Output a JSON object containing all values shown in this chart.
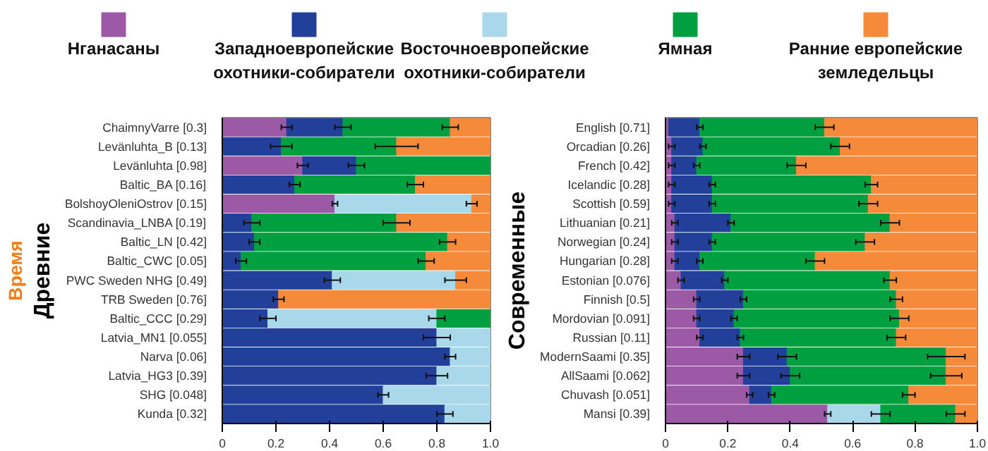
{
  "chart_data": [
    {
      "type": "bar",
      "stacked": true,
      "orientation": "horizontal",
      "legend": "top",
      "xlim": [
        0,
        1.0
      ],
      "xticks": [
        0,
        0.2,
        0.4,
        0.6,
        0.8,
        {
          "value": 1.0,
          "label": "1.0"
        }
      ],
      "annotations": [
        "Время",
        "Древние"
      ],
      "categories": [
        "ChaimnyVarre [0.3]",
        "Levänluhta_B [0.13]",
        "Levänluhta [0.98]",
        "Baltic_BA [0.16]",
        "BolshoyOleniOstrov [0.15]",
        "Scandinavia_LNBA [0.19]",
        "Baltic_LN [0.42]",
        "Baltic_CWC [0.05]",
        "PWC Sweden NHG [0.49]",
        "TRB Sweden [0.76]",
        "Baltic_CCC [0.29]",
        "Latvia_MN1 [0.055]",
        "Narva [0.06]",
        "Latvia_HG3 [0.39]",
        "SHG [0.048]",
        "Kunda [0.32]"
      ],
      "series": [
        {
          "name": "Нганасаны",
          "color": "#9b59a6",
          "values": [
            0.24,
            null,
            0.3,
            null,
            0.42,
            null,
            null,
            null,
            null,
            null,
            null,
            null,
            null,
            null,
            null,
            null
          ],
          "errors": [
            0.02,
            null,
            0.02,
            null,
            0.01,
            null,
            null,
            null,
            null,
            null,
            null,
            null,
            null,
            null,
            null,
            null
          ]
        },
        {
          "name": "Западноевропейские охотники-собиратели",
          "color": "#22409a",
          "values": [
            0.21,
            0.22,
            0.2,
            0.27,
            null,
            0.11,
            0.12,
            0.07,
            0.41,
            0.21,
            0.17,
            0.8,
            0.85,
            0.8,
            0.6,
            0.83
          ],
          "errors": [
            0.03,
            0.04,
            0.03,
            0.02,
            null,
            0.03,
            0.02,
            0.02,
            0.03,
            0.02,
            0.03,
            0.05,
            0.02,
            0.04,
            0.02,
            0.03
          ]
        },
        {
          "name": "Восточноевропейские охотники-собиратели",
          "color": "#a8d8ea",
          "values": [
            null,
            null,
            null,
            null,
            0.51,
            null,
            null,
            null,
            0.46,
            null,
            0.63,
            0.2,
            0.15,
            0.2,
            0.4,
            0.17
          ],
          "errors": [
            null,
            null,
            null,
            null,
            0.02,
            null,
            null,
            null,
            0.04,
            null,
            0.03,
            null,
            null,
            null,
            null,
            null
          ]
        },
        {
          "name": "Ямная",
          "color": "#00a040",
          "values": [
            0.4,
            0.43,
            0.5,
            0.45,
            null,
            0.54,
            0.72,
            0.69,
            null,
            null,
            0.2,
            null,
            null,
            null,
            null,
            null
          ],
          "errors": [
            0.03,
            0.08,
            null,
            0.03,
            null,
            0.05,
            0.03,
            0.03,
            null,
            null,
            null,
            null,
            null,
            null,
            null,
            null
          ]
        },
        {
          "name": "Ранние европейские земледельцы",
          "color": "#f58a3a",
          "values": [
            0.15,
            0.35,
            null,
            0.28,
            0.07,
            0.35,
            0.16,
            0.24,
            0.13,
            0.79,
            null,
            null,
            null,
            null,
            null,
            null
          ]
        }
      ]
    },
    {
      "type": "bar",
      "stacked": true,
      "orientation": "horizontal",
      "xlim": [
        0,
        1.0
      ],
      "xticks": [
        0,
        0.2,
        0.4,
        0.6,
        0.8,
        {
          "value": 1.0,
          "label": "1.0"
        }
      ],
      "annotations": [
        "Современные"
      ],
      "categories": [
        "English [0.71]",
        "Orcadian [0.26]",
        "French [0.42]",
        "Icelandic [0.28]",
        "Scottish [0.59]",
        "Lithuanian [0.21]",
        "Norwegian [0.24]",
        "Hungarian [0.28]",
        "Estonian [0.076]",
        "Finnish [0.5]",
        "Mordovian [0.091]",
        "Russian [0.11]",
        "ModernSaami [0.35]",
        "AllSaami [0.062]",
        "Chuvash [0.051]",
        "Mansi [0.39]"
      ],
      "series": [
        {
          "color": "#9b59a6",
          "values": [
            0.01,
            0.02,
            0.02,
            0.02,
            0.02,
            0.03,
            0.03,
            0.03,
            0.05,
            0.1,
            0.1,
            0.11,
            0.25,
            0.25,
            0.27,
            0.52
          ],
          "errors": [
            null,
            0.01,
            0.01,
            0.01,
            0.01,
            0.01,
            0.01,
            0.01,
            0.01,
            0.01,
            0.01,
            0.01,
            0.02,
            0.02,
            0.01,
            0.01
          ]
        },
        {
          "color": "#22409a",
          "values": [
            0.1,
            0.1,
            0.08,
            0.13,
            0.13,
            0.18,
            0.12,
            0.08,
            0.14,
            0.15,
            0.12,
            0.13,
            0.14,
            0.15,
            0.07,
            null
          ],
          "errors": [
            0.01,
            0.01,
            0.01,
            0.01,
            0.01,
            0.01,
            0.01,
            0.01,
            0.01,
            0.01,
            0.01,
            0.01,
            0.03,
            0.03,
            0.01,
            null
          ]
        },
        {
          "color": "#a8d8ea",
          "values": [
            null,
            null,
            null,
            null,
            null,
            null,
            null,
            null,
            null,
            null,
            null,
            null,
            null,
            null,
            null,
            0.17
          ],
          "errors": [
            null,
            null,
            null,
            null,
            null,
            null,
            null,
            null,
            null,
            null,
            null,
            null,
            null,
            null,
            null,
            0.03
          ]
        },
        {
          "color": "#00a040",
          "values": [
            0.4,
            0.44,
            0.32,
            0.51,
            0.5,
            0.51,
            0.49,
            0.37,
            0.53,
            0.49,
            0.53,
            0.5,
            0.51,
            0.5,
            0.44,
            0.24
          ],
          "errors": [
            0.03,
            0.03,
            0.03,
            0.02,
            0.03,
            0.03,
            0.03,
            0.03,
            0.02,
            0.02,
            0.03,
            0.03,
            0.06,
            0.05,
            0.02,
            0.03
          ]
        },
        {
          "color": "#f58a3a",
          "values": [
            0.49,
            0.44,
            0.58,
            0.34,
            0.35,
            0.28,
            0.36,
            0.52,
            0.28,
            0.26,
            0.25,
            0.26,
            0.1,
            0.1,
            0.22,
            0.07
          ]
        }
      ]
    }
  ]
}
